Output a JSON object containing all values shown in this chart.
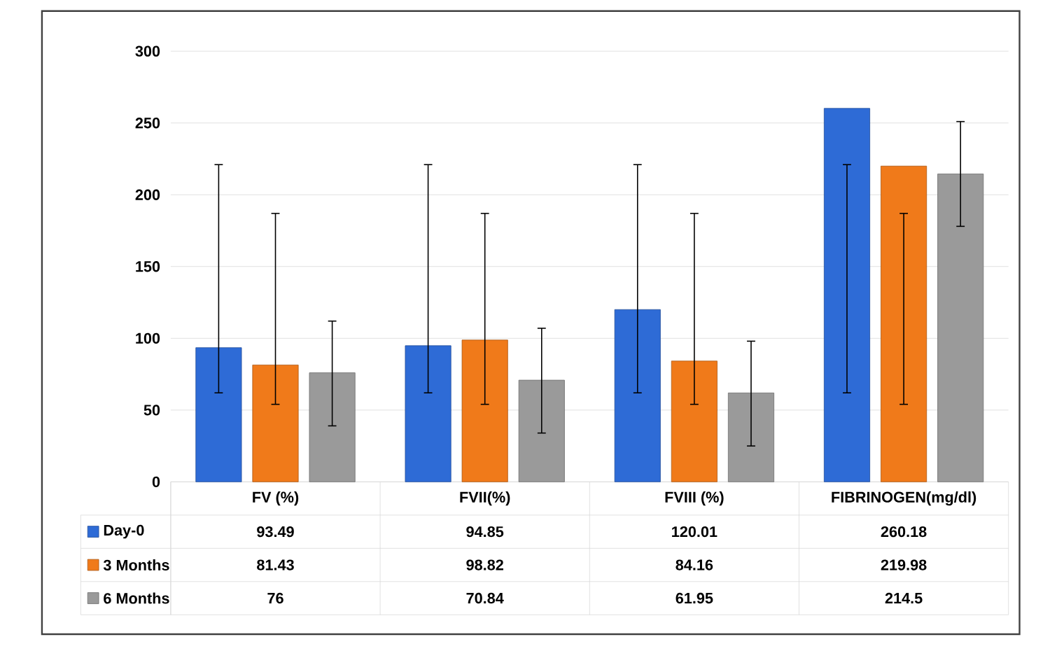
{
  "chart_data": {
    "type": "bar",
    "categories": [
      "FV (%)",
      "FVII(%)",
      "FVIII (%)",
      "FIBRINOGEN(mg/dl)"
    ],
    "series": [
      {
        "name": "Day-0",
        "color": "#2e6bd6",
        "values": [
          93.49,
          94.85,
          120.01,
          260.18
        ],
        "errors": [
          [
            62,
            221
          ],
          [
            62,
            221
          ],
          [
            62,
            221
          ],
          [
            62,
            221
          ]
        ]
      },
      {
        "name": "3 Months",
        "color": "#f07a1a",
        "values": [
          81.43,
          98.82,
          84.16,
          219.98
        ],
        "errors": [
          [
            54,
            187
          ],
          [
            54,
            187
          ],
          [
            54,
            187
          ],
          [
            54,
            187
          ]
        ]
      },
      {
        "name": "6 Months",
        "color": "#9a9a9a",
        "values": [
          76,
          70.84,
          61.95,
          214.5
        ],
        "errors": [
          [
            39,
            112
          ],
          [
            34,
            107
          ],
          [
            25,
            98
          ],
          [
            178,
            251
          ]
        ]
      }
    ],
    "ylim": [
      0,
      300
    ],
    "yticks": [
      0,
      50,
      100,
      150,
      200,
      250,
      300
    ],
    "grid": "y",
    "legend": "bottom left",
    "data_labels": true
  }
}
